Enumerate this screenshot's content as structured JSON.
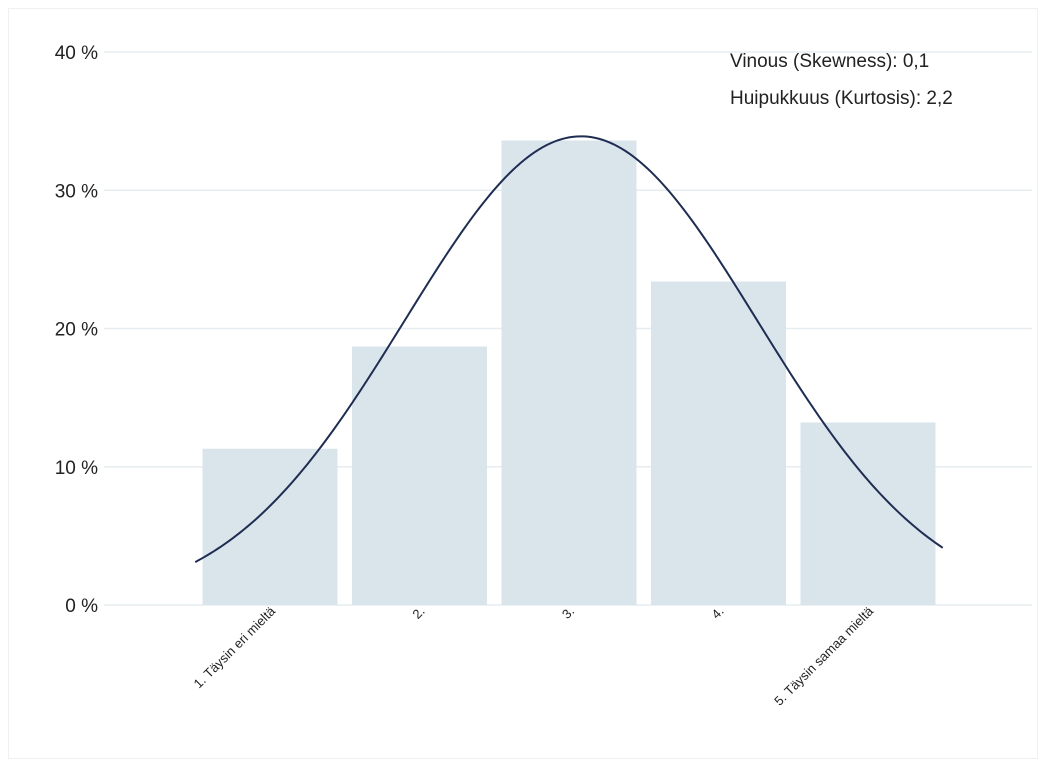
{
  "chart_data": {
    "type": "bar",
    "title": "",
    "xlabel": "",
    "ylabel": "",
    "ylim": [
      0,
      40
    ],
    "y_ticks": [
      "0 %",
      "10 %",
      "20 %",
      "30 %",
      "40 %"
    ],
    "y_tick_values": [
      0,
      10,
      20,
      30,
      40
    ],
    "grid": true,
    "categories": [
      "1. Täysin eri mieltä",
      "2.",
      "3.",
      "4.",
      "5. Täysin samaa mieltä"
    ],
    "values": [
      11.3,
      18.7,
      33.6,
      23.4,
      13.2
    ],
    "bar_color": "#d9e4eb",
    "curve": {
      "type": "normal-fit",
      "color": "#1f2d52",
      "x_range": [
        0.5,
        5.5
      ],
      "peak": 33.9,
      "peak_x": 3.08,
      "sd": 1.18
    },
    "annotations": [
      "Vinous (Skewness): 0,1",
      "Huipukkuus (Kurtosis): 2,2"
    ]
  }
}
